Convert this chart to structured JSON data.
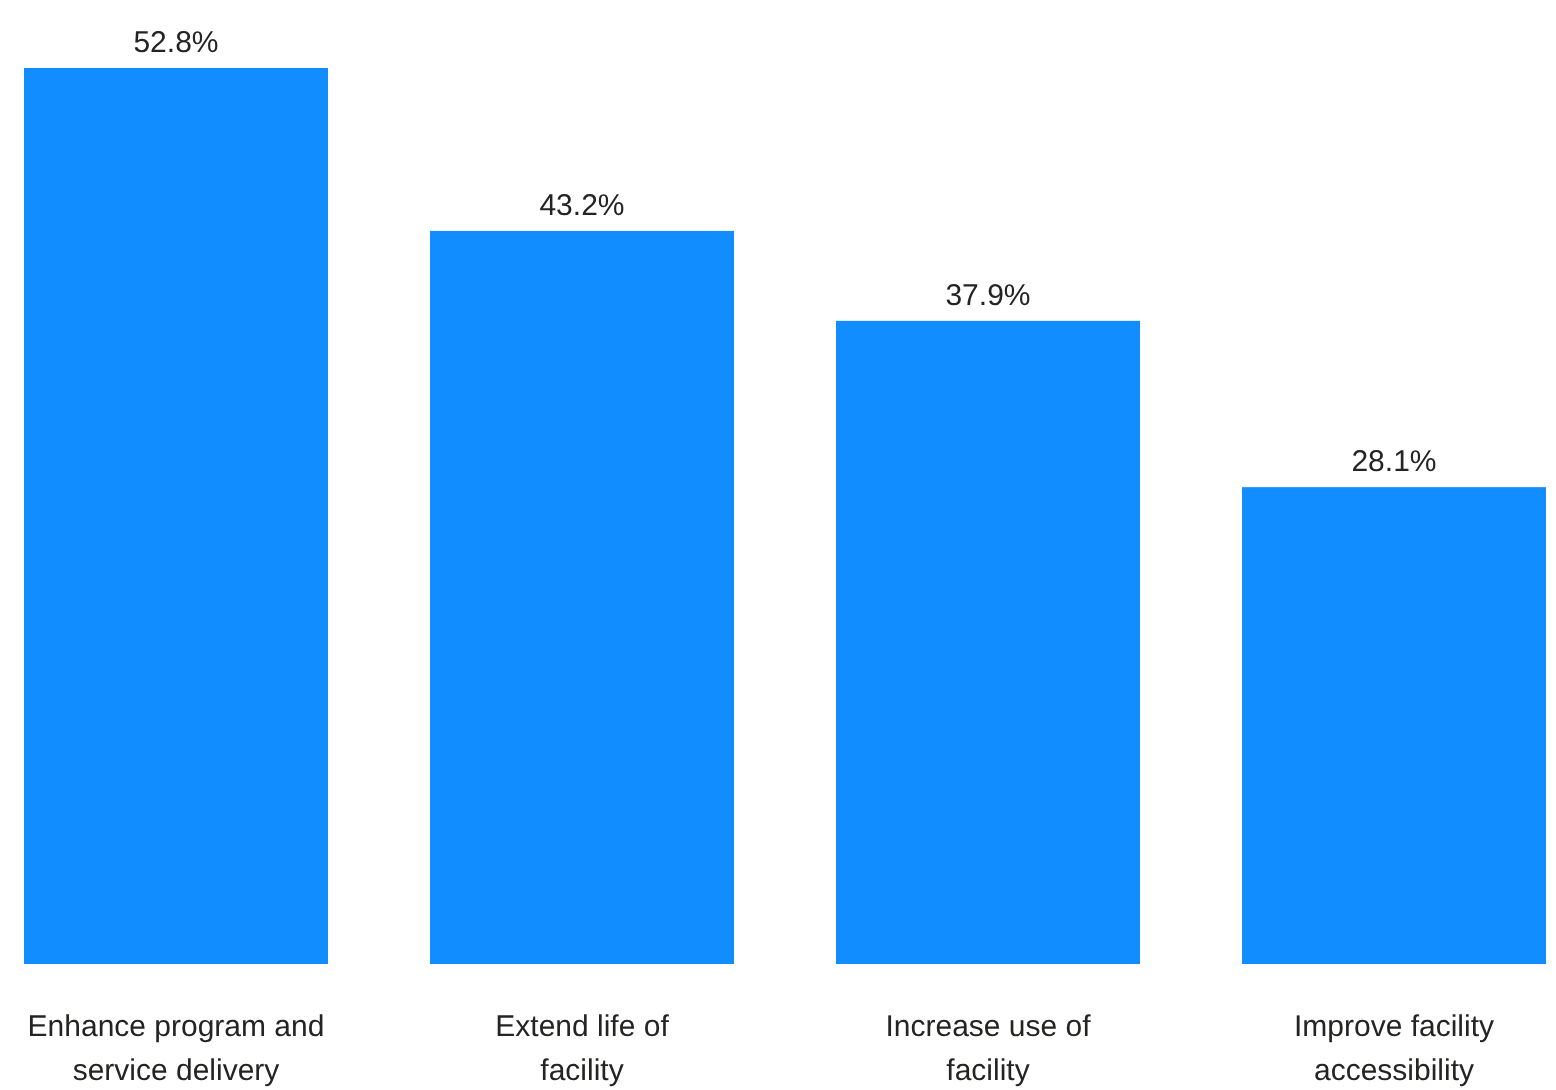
{
  "chart_data": {
    "type": "bar",
    "categories": [
      "Enhance program and service delivery",
      "Extend life of facility",
      "Increase use of facility",
      "Improve facility accessibility"
    ],
    "values": [
      52.8,
      43.2,
      37.9,
      28.1
    ],
    "color": "#118dff",
    "value_labels": [
      "52.8%",
      "43.2%",
      "37.9%",
      "28.1%"
    ]
  }
}
